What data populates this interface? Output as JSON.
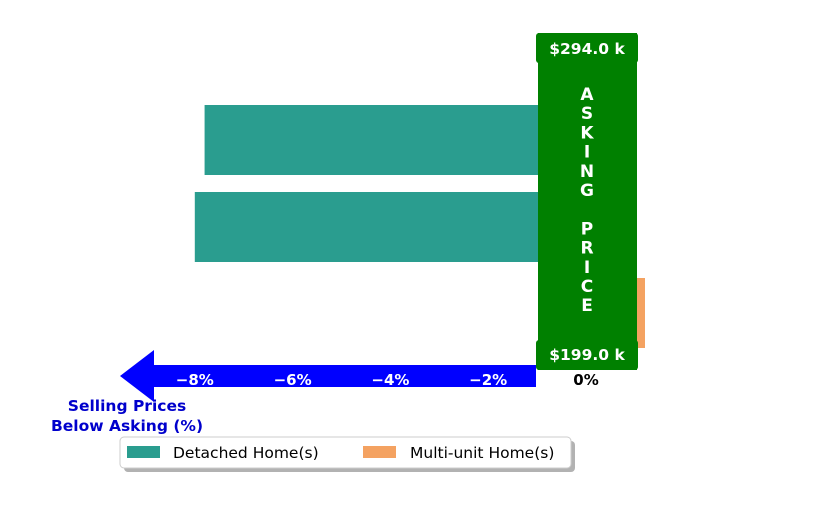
{
  "chart_data": {
    "type": "bar",
    "orientation": "horizontal",
    "series": [
      {
        "name": "Detached Home(s)",
        "color": "#2a9d8f",
        "values": [
          -7.8,
          -8.0
        ]
      },
      {
        "name": "Multi-unit Home(s)",
        "color": "#f4a261",
        "values": [
          0.2
        ]
      }
    ],
    "xlim": [
      -8.6,
      0
    ],
    "xticks": [
      -8,
      -6,
      -4,
      -2,
      0
    ],
    "xtick_labels": [
      "−8%",
      "−6%",
      "−4%",
      "−2%",
      "0%"
    ],
    "xlabel": "Selling Prices\nBelow Asking (%)",
    "asking_price_label": "ASKING\n\nPRICE",
    "top_price": "$294.0 k",
    "bottom_price": "$199.0 k",
    "legend_position": "bottom-center",
    "colors": {
      "arrow": "#0000ff",
      "xlabel": "#0000cc",
      "asking_box": "#008000",
      "tick_text_on_arrow": "#ffffff",
      "zero_tick": "#000000"
    }
  }
}
